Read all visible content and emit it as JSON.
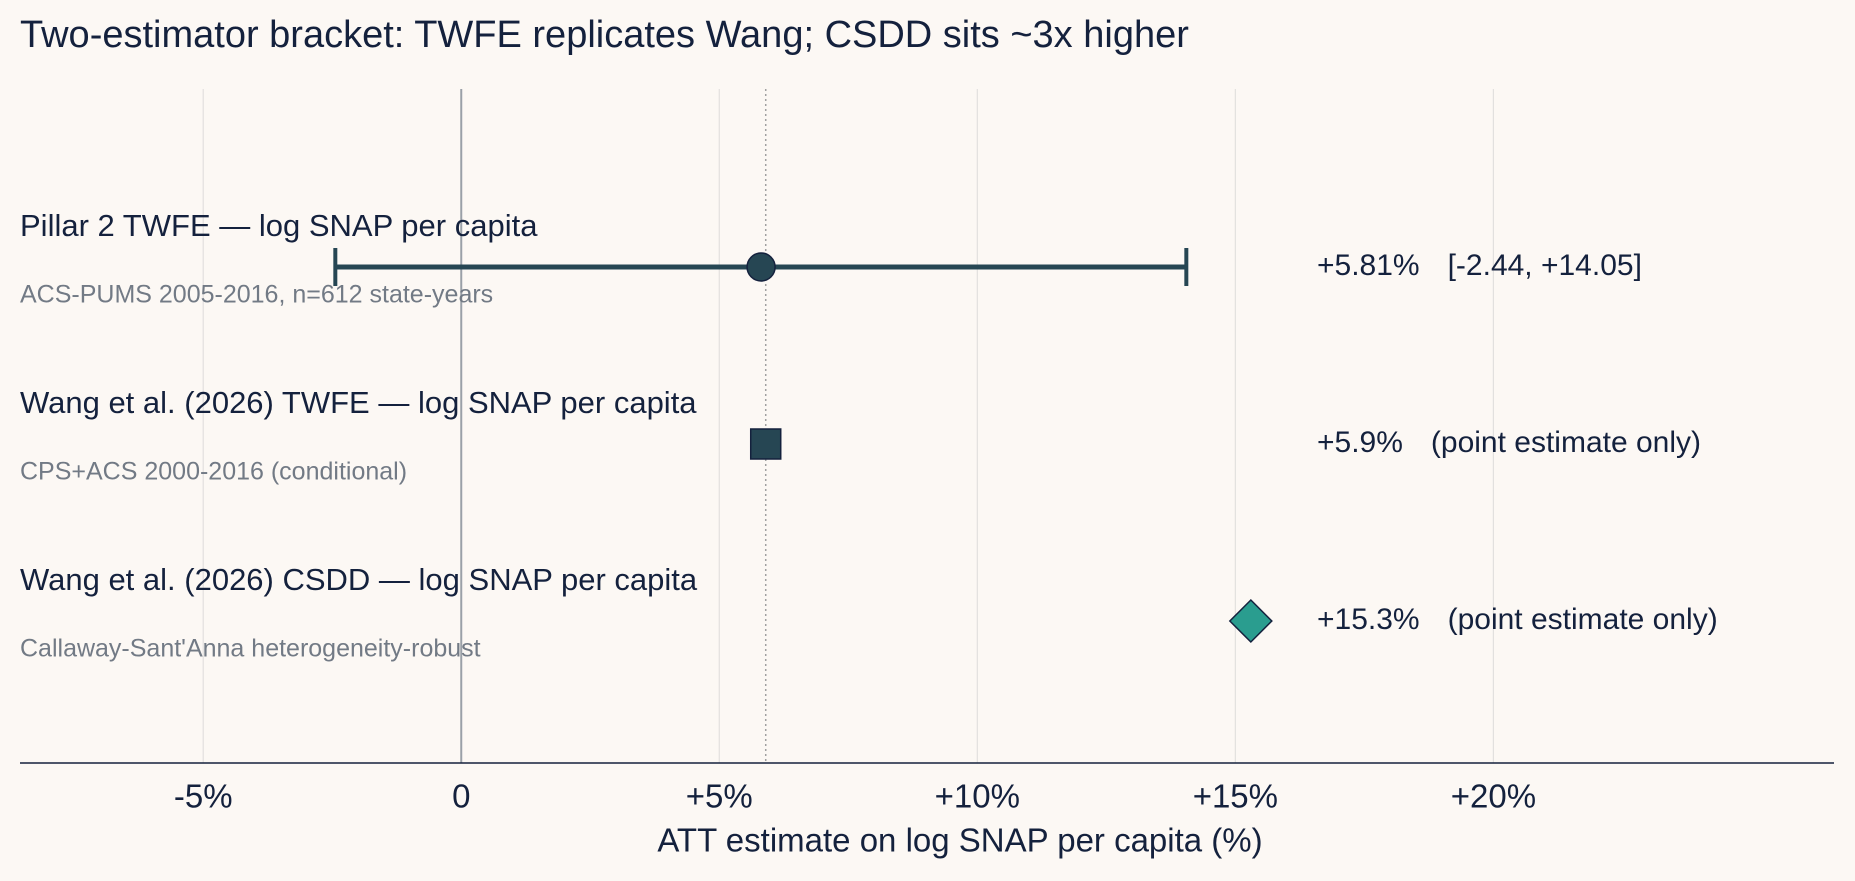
{
  "chart_data": {
    "type": "forest",
    "title": "Two-estimator bracket: TWFE replicates Wang; CSDD sits ~3x higher",
    "x_label": "ATT estimate on log SNAP per capita (%)",
    "categories": [
      "Pillar 2 TWFE — log SNAP per capita",
      "Wang et al. (2026) TWFE — log SNAP per capita",
      "Wang et al. (2026) CSDD — log SNAP per capita"
    ],
    "subtitles": [
      "ACS-PUMS 2005-2016, n=612 state-years",
      "CPS+ACS 2000-2016 (conditional)",
      "Callaway-Sant'Anna heterogeneity-robust"
    ],
    "values": [
      5.81,
      5.9,
      15.3
    ],
    "value_labels": [
      "+5.81%",
      "+5.9%",
      "+15.3%"
    ],
    "ci_low": [
      -2.44,
      null,
      null
    ],
    "ci_high": [
      14.05,
      null,
      null
    ],
    "interval_notes": [
      "[-2.44, +14.05]",
      "(point estimate only)",
      "(point estimate only)"
    ],
    "markers": [
      "circle",
      "square",
      "diamond"
    ],
    "colors": [
      "#264653",
      "#264653",
      "#2a9d8f"
    ],
    "reference_index": 1,
    "xlim": [
      -8.55,
      26.6
    ],
    "xticks": [
      {
        "value": -5,
        "label": "-5%"
      },
      0,
      {
        "value": 5,
        "label": "+5%"
      },
      {
        "value": 10,
        "label": "+10%"
      },
      {
        "value": 15,
        "label": "+15%"
      },
      {
        "value": 20,
        "label": "+20%"
      }
    ],
    "grid": true
  }
}
